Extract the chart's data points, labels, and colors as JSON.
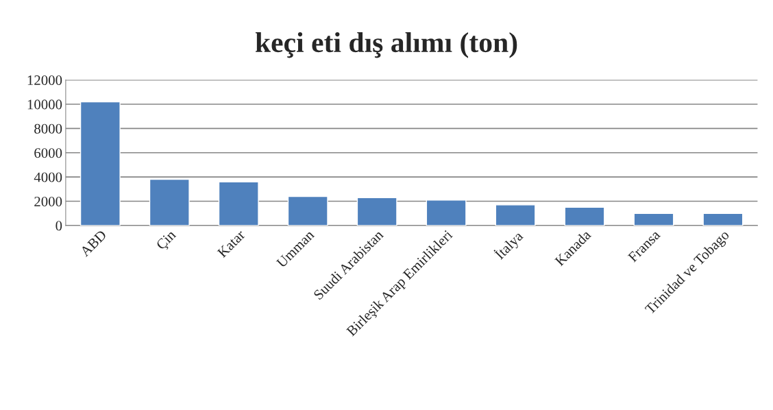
{
  "chart_data": {
    "type": "bar",
    "title": "keçi eti dış alımı (ton)",
    "categories": [
      "ABD",
      "Çin",
      "Katar",
      "Umman",
      "Suudi Arabistan",
      "Birleşik Arap Emirlikleri",
      "İtalya",
      "Kanada",
      "Fransa",
      "Trinidad ve Tobago"
    ],
    "values": [
      10200,
      3800,
      3600,
      2400,
      2300,
      2100,
      1700,
      1500,
      1000,
      1000
    ],
    "color": "#4f81bd",
    "ylim": [
      0,
      12000
    ],
    "yticks": [
      0,
      2000,
      4000,
      6000,
      8000,
      10000,
      12000
    ],
    "grid": "y"
  }
}
